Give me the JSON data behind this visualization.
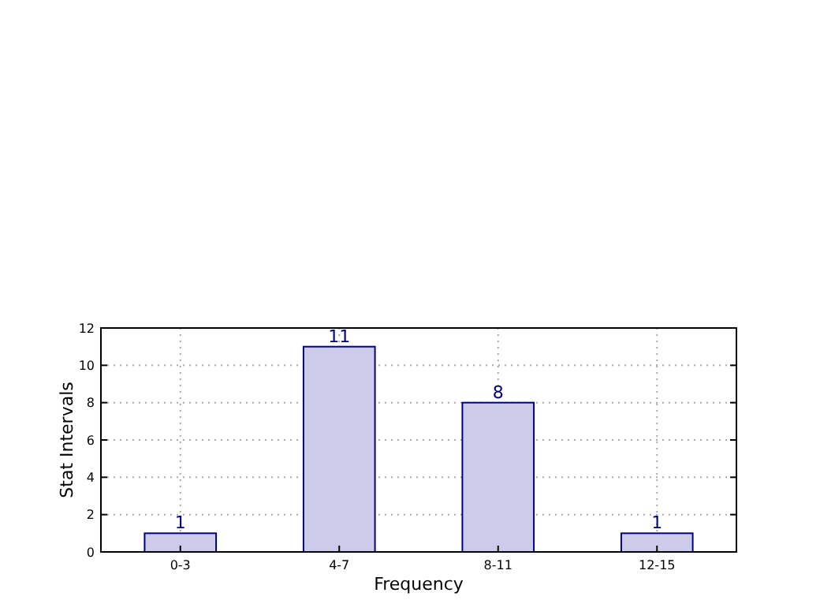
{
  "chart_data": {
    "type": "bar",
    "xlabel": "Frequency",
    "ylabel": "Stat Intervals",
    "categories": [
      "0-3",
      "4-7",
      "8-11",
      "12-15"
    ],
    "values": [
      1,
      11,
      8,
      1
    ],
    "color": "#ccccea",
    "ylim": [
      0,
      12
    ],
    "yticks": [
      0,
      2,
      4,
      6,
      8,
      10,
      12
    ],
    "grid": true,
    "data_labels": true
  }
}
